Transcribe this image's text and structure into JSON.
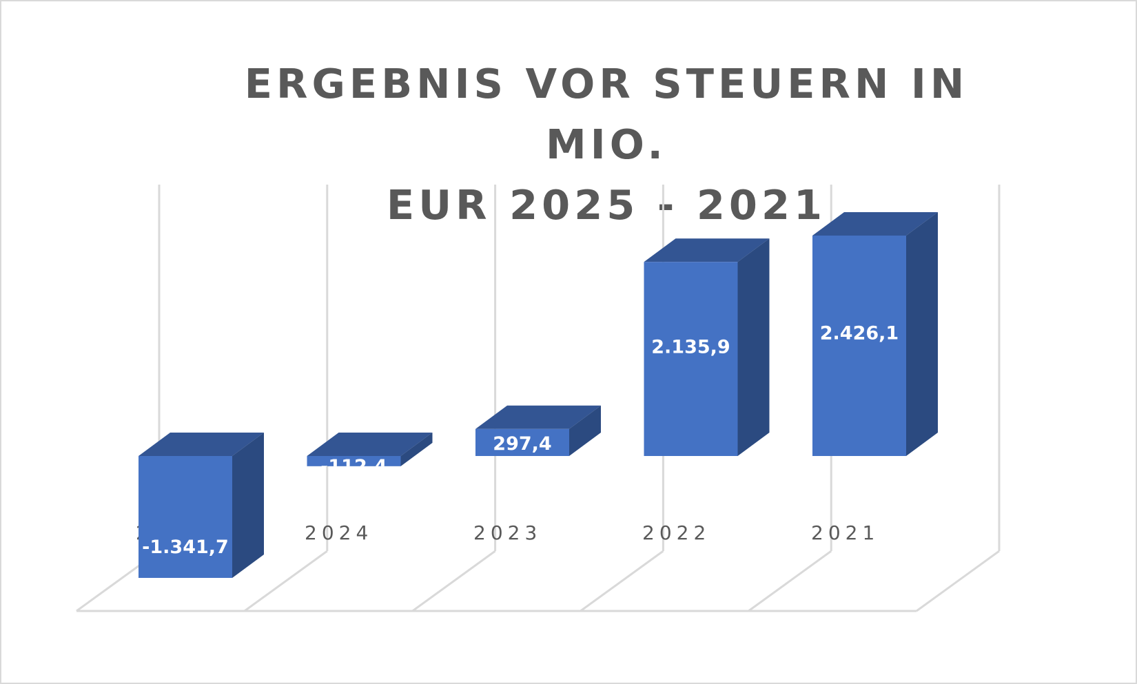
{
  "title": {
    "line1": "ERGEBNIS VOR STEUERN IN MIO.",
    "line2": "EUR 2025 - 2021"
  },
  "colors": {
    "bar_front": "#4472c4",
    "bar_top": "#335593",
    "bar_side": "#2b4a80",
    "grid": "#d9d9d9",
    "text": "#595959",
    "label": "#ffffff"
  },
  "chart_data": {
    "type": "bar",
    "style": "3d-column",
    "title": "ERGEBNIS VOR STEUERN IN MIO. EUR 2025 - 2021",
    "xlabel": "",
    "ylabel": "",
    "categories": [
      "2025",
      "2024",
      "2023",
      "2022",
      "2021"
    ],
    "values": [
      -1341.7,
      -112.4,
      297.4,
      2135.9,
      2426.1
    ],
    "value_labels": [
      "-1.341,7",
      "-112,4",
      "297,4",
      "2.135,9",
      "2.426,1"
    ],
    "unit": "Mio. EUR",
    "grid": true,
    "legend": null,
    "y_axis_visible": false
  }
}
